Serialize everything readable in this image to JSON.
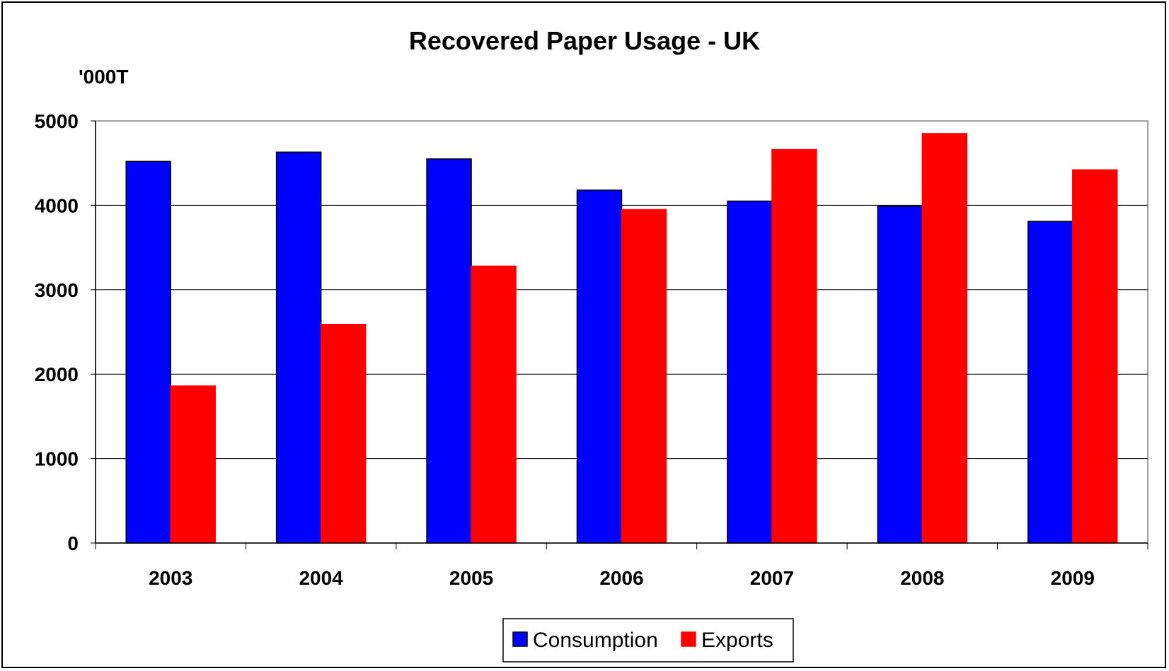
{
  "chart_data": {
    "type": "bar",
    "title": "Recovered Paper Usage - UK",
    "ylabel": "'000T",
    "xlabel": "",
    "categories": [
      "2003",
      "2004",
      "2005",
      "2006",
      "2007",
      "2008",
      "2009"
    ],
    "series": [
      {
        "name": "Consumption",
        "color": "#0000ff",
        "values": [
          4520,
          4630,
          4550,
          4180,
          4050,
          3990,
          3810
        ]
      },
      {
        "name": "Exports",
        "color": "#ff0000",
        "values": [
          1860,
          2590,
          3280,
          3950,
          4660,
          4850,
          4420
        ]
      }
    ],
    "ylim": [
      0,
      5000
    ],
    "yticks": [
      "0",
      "1000",
      "2000",
      "3000",
      "4000",
      "5000"
    ],
    "grid": true,
    "legend_position": "bottom"
  }
}
